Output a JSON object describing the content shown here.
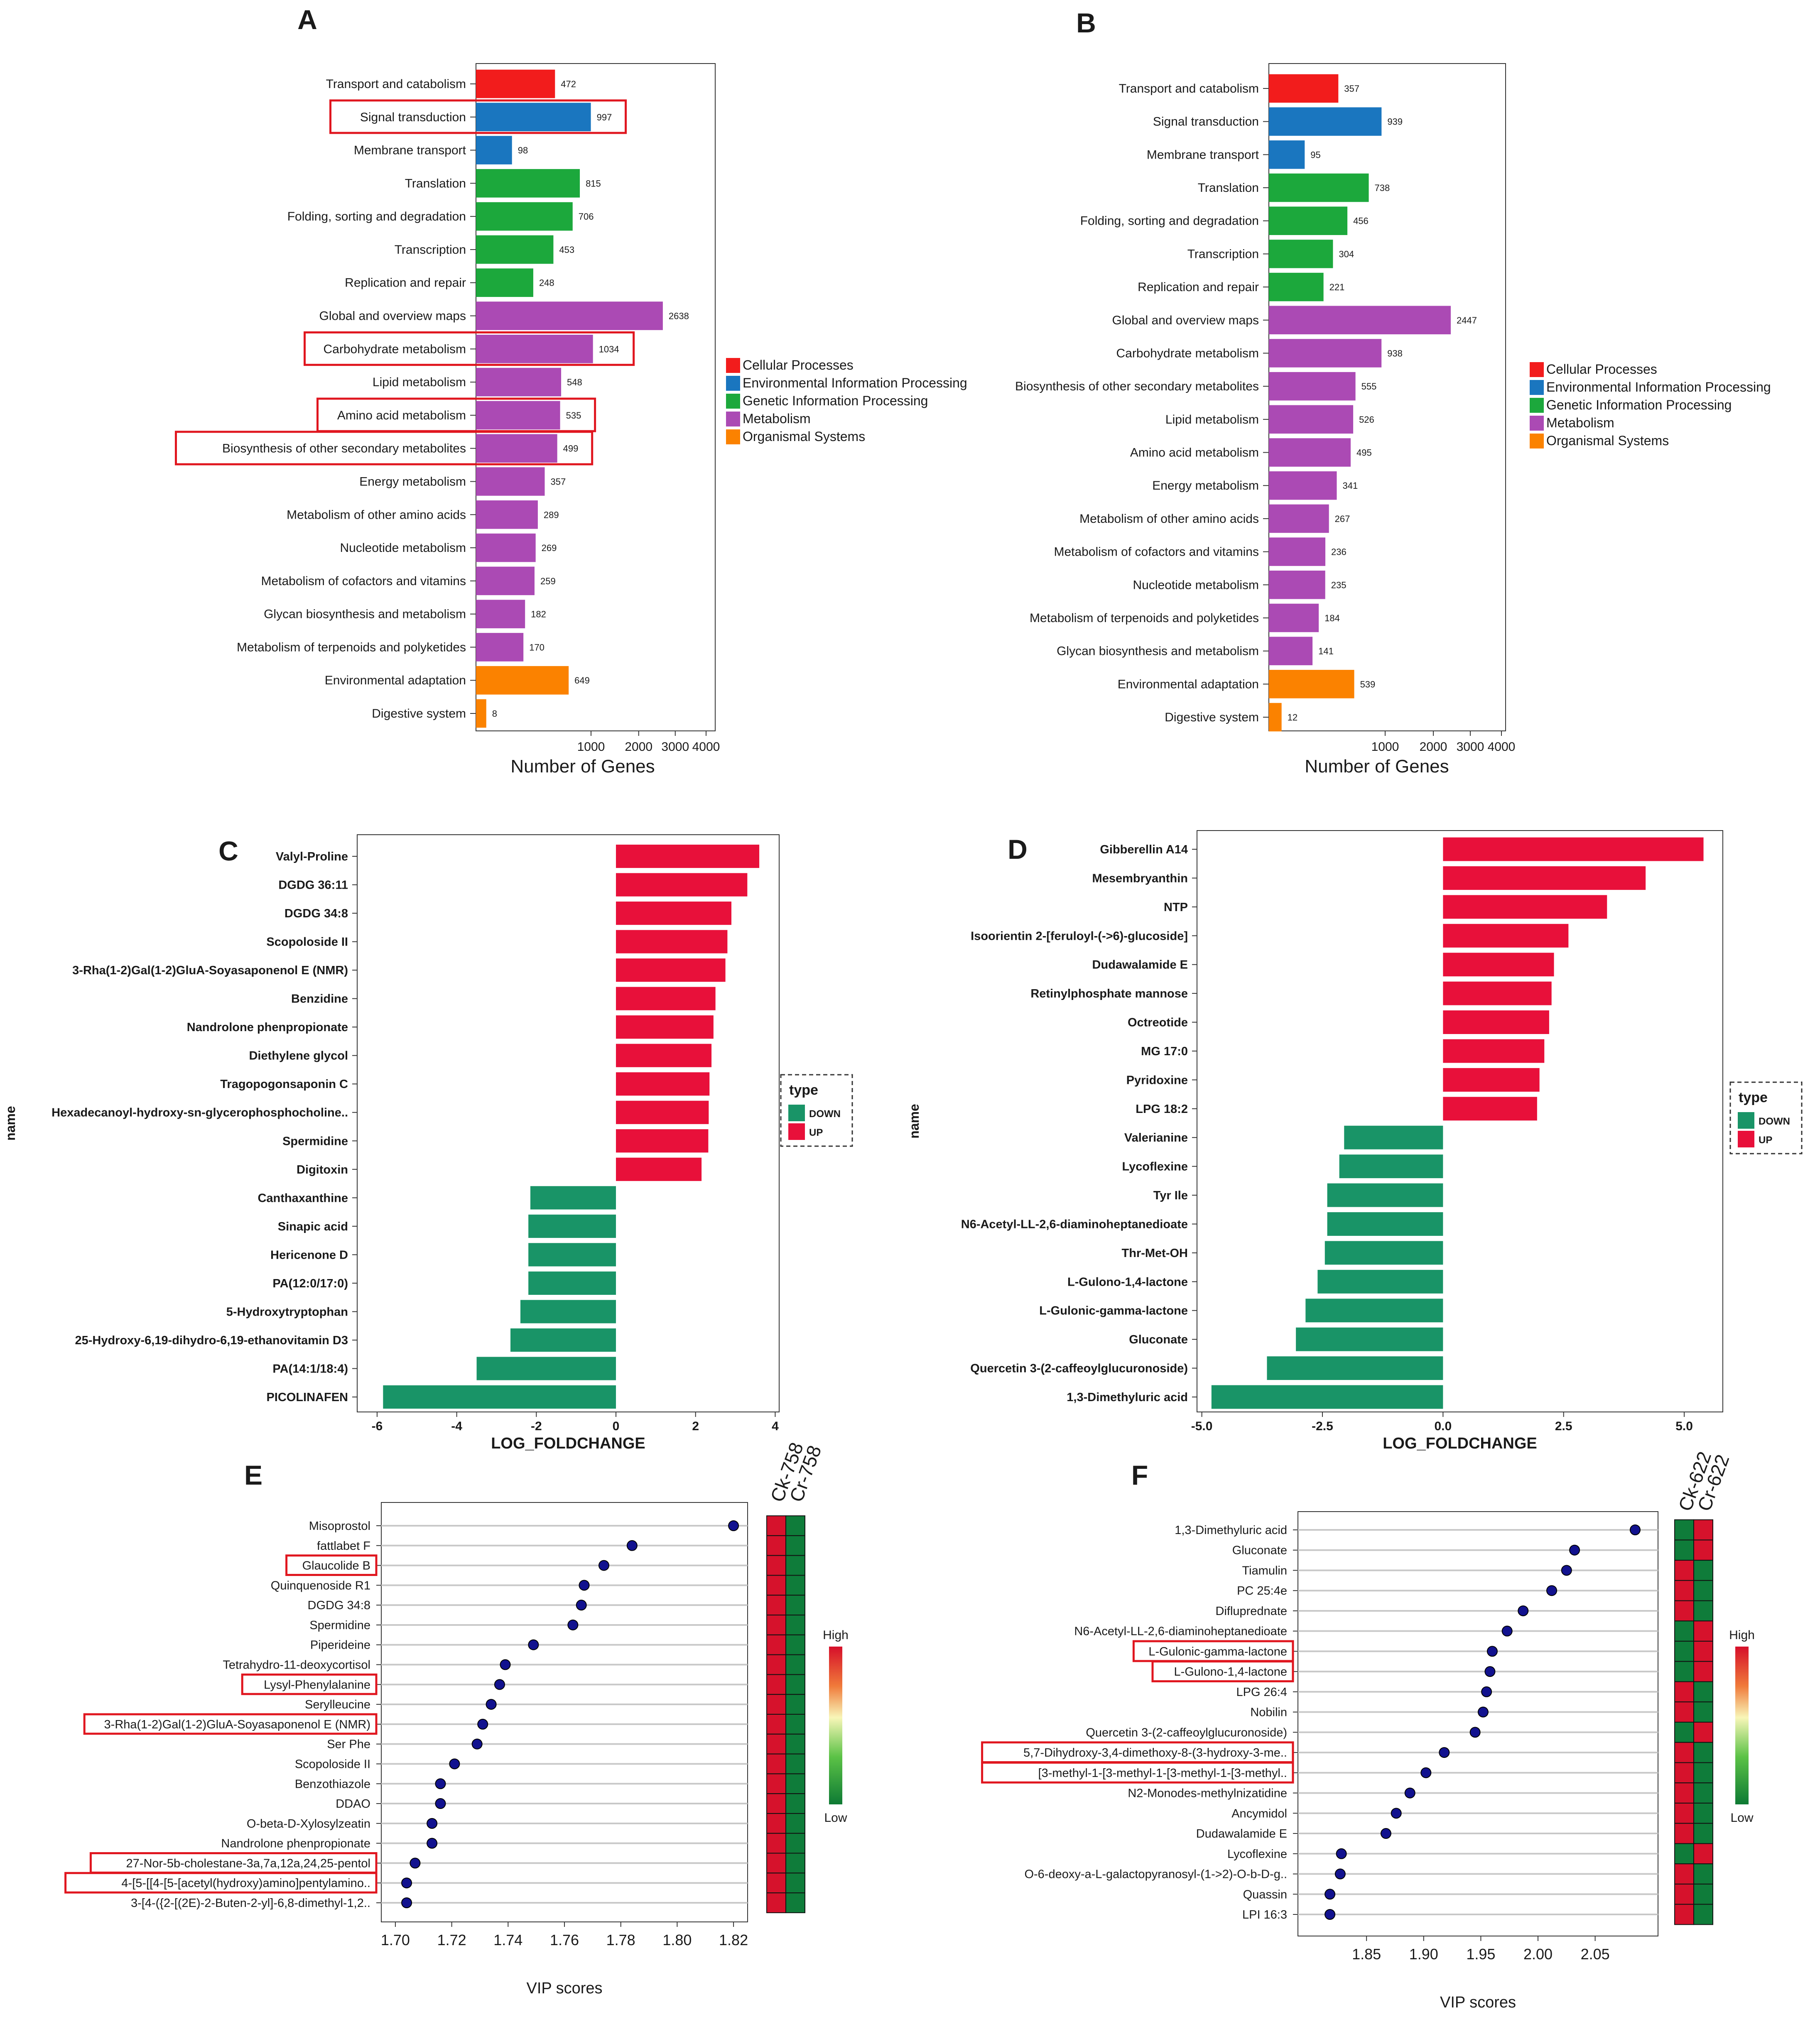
{
  "colors": {
    "cellular": "#f21c1c",
    "environmental": "#1a76bf",
    "genetic": "#1ca83c",
    "metabolism": "#ab4ab4",
    "organismal": "#fb8200",
    "up": "#e8103a",
    "down": "#199467",
    "highlight": "#e0161f",
    "dot": "#12128f",
    "heat_red": "#d6122c",
    "heat_green": "#0f7c3a"
  },
  "chart_data": [
    {
      "panel": "A",
      "type": "bar",
      "orientation": "horizontal",
      "xscale": "sqrt",
      "xlabel": "Number of Genes",
      "xticks": [
        "1000",
        "2000",
        "3000",
        "4000"
      ],
      "xlim": [
        0,
        4000
      ],
      "categories": [
        "Transport and catabolism",
        "Signal transduction",
        "Membrane transport",
        "Translation",
        "Folding, sorting and degradation",
        "Transcription",
        "Replication and repair",
        "Global and overview maps",
        "Carbohydrate metabolism",
        "Lipid metabolism",
        "Amino acid metabolism",
        "Biosynthesis of other secondary metabolites",
        "Energy metabolism",
        "Metabolism of other amino acids",
        "Nucleotide metabolism",
        "Metabolism of cofactors and vitamins",
        "Glycan biosynthesis and metabolism",
        "Metabolism of terpenoids and polyketides",
        "Environmental adaptation",
        "Digestive system"
      ],
      "values": [
        472,
        997,
        98,
        815,
        706,
        453,
        248,
        2638,
        1034,
        548,
        535,
        499,
        357,
        289,
        269,
        259,
        182,
        170,
        649,
        8
      ],
      "groups": [
        "cellular",
        "environmental",
        "environmental",
        "genetic",
        "genetic",
        "genetic",
        "genetic",
        "metabolism",
        "metabolism",
        "metabolism",
        "metabolism",
        "metabolism",
        "metabolism",
        "metabolism",
        "metabolism",
        "metabolism",
        "metabolism",
        "metabolism",
        "organismal",
        "organismal"
      ],
      "highlighted": [
        "Signal transduction",
        "Carbohydrate metabolism",
        "Amino acid metabolism",
        "Biosynthesis of other secondary metabolites"
      ],
      "legend": [
        "Cellular Processes",
        "Environmental Information Processing",
        "Genetic Information Processing",
        "Metabolism",
        "Organismal Systems"
      ]
    },
    {
      "panel": "B",
      "type": "bar",
      "orientation": "horizontal",
      "xscale": "sqrt",
      "xlabel": "Number of Genes",
      "xticks": [
        "1000",
        "2000",
        "3000",
        "4000"
      ],
      "xlim": [
        0,
        4000
      ],
      "categories": [
        "Transport and catabolism",
        "Signal transduction",
        "Membrane transport",
        "Translation",
        "Folding, sorting and degradation",
        "Transcription",
        "Replication and repair",
        "Global and overview maps",
        "Carbohydrate metabolism",
        "Biosynthesis of other secondary metabolites",
        "Lipid metabolism",
        "Amino acid metabolism",
        "Energy metabolism",
        "Metabolism of other amino acids",
        "Metabolism of cofactors and vitamins",
        "Nucleotide metabolism",
        "Metabolism of terpenoids and polyketides",
        "Glycan biosynthesis and metabolism",
        "Environmental adaptation",
        "Digestive system"
      ],
      "values": [
        357,
        939,
        95,
        738,
        456,
        304,
        221,
        2447,
        938,
        555,
        526,
        495,
        341,
        267,
        236,
        235,
        184,
        141,
        539,
        12
      ],
      "groups": [
        "cellular",
        "environmental",
        "environmental",
        "genetic",
        "genetic",
        "genetic",
        "genetic",
        "metabolism",
        "metabolism",
        "metabolism",
        "metabolism",
        "metabolism",
        "metabolism",
        "metabolism",
        "metabolism",
        "metabolism",
        "metabolism",
        "metabolism",
        "organismal",
        "organismal"
      ],
      "highlighted": [],
      "legend": [
        "Cellular Processes",
        "Environmental Information Processing",
        "Genetic Information Processing",
        "Metabolism",
        "Organismal Systems"
      ]
    },
    {
      "panel": "C",
      "type": "bar",
      "orientation": "horizontal",
      "xlabel": "LOG_FOLDCHANGE",
      "ylabel": "name",
      "xlim": [
        -6.5,
        4.1
      ],
      "xticks": [
        -6,
        -4,
        -2,
        0,
        2,
        4
      ],
      "xtick_labels": [
        "-6",
        "-4",
        "-2",
        "0",
        "2",
        "4"
      ],
      "categories": [
        "Valyl-Proline",
        "DGDG 36:11",
        "DGDG 34:8",
        "Scopoloside II",
        "3-Rha(1-2)Gal(1-2)GluA-Soyasaponenol E (NMR)",
        "Benzidine",
        "Nandrolone phenpropionate",
        "Diethylene glycol",
        "Tragopogonsaponin C",
        "Hexadecanoyl-hydroxy-sn-glycerophosphocholine..",
        "Spermidine",
        "Digitoxin",
        "Canthaxanthine",
        "Sinapic acid",
        "Hericenone D",
        "PA(12:0/17:0)",
        "5-Hydroxytryptophan",
        "25-Hydroxy-6,19-dihydro-6,19-ethanovitamin D3",
        "PA(14:1/18:4)",
        "PICOLINAFEN"
      ],
      "values": [
        3.6,
        3.3,
        2.9,
        2.8,
        2.75,
        2.5,
        2.45,
        2.4,
        2.35,
        2.33,
        2.32,
        2.15,
        -2.15,
        -2.2,
        -2.2,
        -2.2,
        -2.4,
        -2.65,
        -3.5,
        -5.85
      ],
      "types": [
        "UP",
        "UP",
        "UP",
        "UP",
        "UP",
        "UP",
        "UP",
        "UP",
        "UP",
        "UP",
        "UP",
        "UP",
        "DOWN",
        "DOWN",
        "DOWN",
        "DOWN",
        "DOWN",
        "DOWN",
        "DOWN",
        "DOWN"
      ],
      "legend_title": "type",
      "legend": [
        "DOWN",
        "UP"
      ]
    },
    {
      "panel": "D",
      "type": "bar",
      "orientation": "horizontal",
      "xlabel": "LOG_FOLDCHANGE",
      "ylabel": "name",
      "xlim": [
        -5.1,
        5.8
      ],
      "xticks": [
        -5,
        -2.5,
        0,
        2.5,
        5
      ],
      "xtick_labels": [
        "-5.0",
        "-2.5",
        "0.0",
        "2.5",
        "5.0"
      ],
      "categories": [
        "Gibberellin A14",
        "Mesembryanthin",
        "NTP",
        "Isoorientin 2-[feruloyl-(->6)-glucoside]",
        "Dudawalamide E",
        "Retinylphosphate mannose",
        "Octreotide",
        "MG 17:0",
        "Pyridoxine",
        "LPG 18:2",
        "Valerianine",
        "Lycoflexine",
        "Tyr Ile",
        "N6-Acetyl-LL-2,6-diaminoheptanedioate",
        "Thr-Met-OH",
        "L-Gulono-1,4-lactone",
        "L-Gulonic-gamma-lactone",
        "Gluconate",
        "Quercetin 3-(2-caffeoylglucuronoside)",
        "1,3-Dimethyluric acid"
      ],
      "values": [
        5.4,
        4.2,
        3.4,
        2.6,
        2.3,
        2.25,
        2.2,
        2.1,
        2.0,
        1.95,
        -2.05,
        -2.15,
        -2.4,
        -2.4,
        -2.45,
        -2.6,
        -2.85,
        -3.05,
        -3.65,
        -4.8
      ],
      "types": [
        "UP",
        "UP",
        "UP",
        "UP",
        "UP",
        "UP",
        "UP",
        "UP",
        "UP",
        "UP",
        "DOWN",
        "DOWN",
        "DOWN",
        "DOWN",
        "DOWN",
        "DOWN",
        "DOWN",
        "DOWN",
        "DOWN",
        "DOWN"
      ],
      "legend_title": "type",
      "legend": [
        "DOWN",
        "UP"
      ]
    },
    {
      "panel": "E",
      "type": "scatter",
      "xlabel": "VIP scores",
      "xlim": [
        1.695,
        1.825
      ],
      "xticks": [
        1.7,
        1.72,
        1.74,
        1.76,
        1.78,
        1.8,
        1.82
      ],
      "xtick_labels": [
        "1.70",
        "1.72",
        "1.74",
        "1.76",
        "1.78",
        "1.80",
        "1.82"
      ],
      "categories": [
        "Misoprostol",
        "fattlabet F",
        "Glaucolide B",
        "Quinquenoside R1",
        "DGDG 34:8",
        "Spermidine",
        "Piperideine",
        "Tetrahydro-11-deoxycortisol",
        "Lysyl-Phenylalanine",
        "Serylleucine",
        "3-Rha(1-2)Gal(1-2)GluA-Soyasaponenol E (NMR)",
        "Ser Phe",
        "Scopoloside II",
        "Benzothiazole",
        "DDAO",
        "O-beta-D-Xylosylzeatin",
        "Nandrolone phenpropionate",
        "27-Nor-5b-cholestane-3a,7a,12a,24,25-pentol",
        "4-[5-[[4-[5-[acetyl(hydroxy)amino]pentylamino..",
        "3-[4-({2-[(2E)-2-Buten-2-yl]-6,8-dimethyl-1,2.."
      ],
      "values": [
        1.82,
        1.784,
        1.774,
        1.767,
        1.766,
        1.763,
        1.749,
        1.739,
        1.737,
        1.734,
        1.731,
        1.729,
        1.721,
        1.716,
        1.716,
        1.713,
        1.713,
        1.707,
        1.704,
        1.704
      ],
      "highlighted": [
        "Glaucolide B",
        "Lysyl-Phenylalanine",
        "3-Rha(1-2)Gal(1-2)GluA-Soyasaponenol E (NMR)",
        "27-Nor-5b-cholestane-3a,7a,12a,24,25-pentol",
        "4-[5-[[4-[5-[acetyl(hydroxy)amino]pentylamino.."
      ],
      "heatmap_columns": [
        "Ck-758",
        "Cr-758"
      ],
      "heatmap": [
        [
          "high",
          "low"
        ],
        [
          "high",
          "low"
        ],
        [
          "high",
          "low"
        ],
        [
          "high",
          "low"
        ],
        [
          "high",
          "low"
        ],
        [
          "high",
          "low"
        ],
        [
          "high",
          "low"
        ],
        [
          "high",
          "low"
        ],
        [
          "high",
          "low"
        ],
        [
          "high",
          "low"
        ],
        [
          "high",
          "low"
        ],
        [
          "high",
          "low"
        ],
        [
          "high",
          "low"
        ],
        [
          "high",
          "low"
        ],
        [
          "high",
          "low"
        ],
        [
          "high",
          "low"
        ],
        [
          "high",
          "low"
        ],
        [
          "high",
          "low"
        ],
        [
          "high",
          "low"
        ],
        [
          "high",
          "low"
        ]
      ],
      "colorbar": [
        "High",
        "Low"
      ]
    },
    {
      "panel": "F",
      "type": "scatter",
      "xlabel": "VIP scores",
      "xlim": [
        1.79,
        2.105
      ],
      "xticks": [
        1.85,
        1.9,
        1.95,
        2.0,
        2.05
      ],
      "xtick_labels": [
        "1.85",
        "1.90",
        "1.95",
        "2.00",
        "2.05"
      ],
      "categories": [
        "1,3-Dimethyluric acid",
        "Gluconate",
        "Tiamulin",
        "PC 25:4e",
        "Difluprednate",
        "N6-Acetyl-LL-2,6-diaminoheptanedioate",
        "L-Gulonic-gamma-lactone",
        "L-Gulono-1,4-lactone",
        "LPG 26:4",
        "Nobilin",
        "Quercetin 3-(2-caffeoylglucuronoside)",
        "5,7-Dihydroxy-3,4-dimethoxy-8-(3-hydroxy-3-me..",
        "[3-methyl-1-[3-methyl-1-[3-methyl-1-[3-methyl..",
        "N2-Monodes-methylnizatidine",
        "Ancymidol",
        "Dudawalamide E",
        "Lycoflexine",
        "O-6-deoxy-a-L-galactopyranosyl-(1->2)-O-b-D-g..",
        "Quassin",
        "LPI 16:3"
      ],
      "values": [
        2.085,
        2.032,
        2.025,
        2.012,
        1.987,
        1.973,
        1.96,
        1.958,
        1.955,
        1.952,
        1.945,
        1.918,
        1.902,
        1.888,
        1.876,
        1.867,
        1.828,
        1.827,
        1.818,
        1.818
      ],
      "highlighted": [
        "L-Gulonic-gamma-lactone",
        "L-Gulono-1,4-lactone",
        "5,7-Dihydroxy-3,4-dimethoxy-8-(3-hydroxy-3-me..",
        "[3-methyl-1-[3-methyl-1-[3-methyl-1-[3-methyl.."
      ],
      "heatmap_columns": [
        "Ck-622",
        "Cr-622"
      ],
      "heatmap": [
        [
          "low",
          "high"
        ],
        [
          "low",
          "high"
        ],
        [
          "high",
          "low"
        ],
        [
          "high",
          "low"
        ],
        [
          "high",
          "low"
        ],
        [
          "low",
          "high"
        ],
        [
          "low",
          "high"
        ],
        [
          "low",
          "high"
        ],
        [
          "high",
          "low"
        ],
        [
          "high",
          "low"
        ],
        [
          "low",
          "high"
        ],
        [
          "high",
          "low"
        ],
        [
          "high",
          "low"
        ],
        [
          "high",
          "low"
        ],
        [
          "high",
          "low"
        ],
        [
          "high",
          "low"
        ],
        [
          "low",
          "high"
        ],
        [
          "high",
          "low"
        ],
        [
          "high",
          "low"
        ],
        [
          "high",
          "low"
        ]
      ],
      "colorbar": [
        "High",
        "Low"
      ]
    }
  ]
}
